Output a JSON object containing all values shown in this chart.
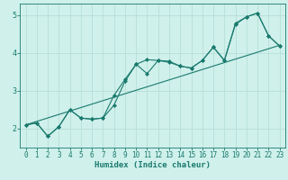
{
  "xlabel": "Humidex (Indice chaleur)",
  "xlim": [
    -0.5,
    23.5
  ],
  "ylim": [
    1.5,
    5.3
  ],
  "xticks": [
    0,
    1,
    2,
    3,
    4,
    5,
    6,
    7,
    8,
    9,
    10,
    11,
    12,
    13,
    14,
    15,
    16,
    17,
    18,
    19,
    20,
    21,
    22,
    23
  ],
  "yticks": [
    2,
    3,
    4,
    5
  ],
  "bg_color": "#cff0eb",
  "line_color": "#1a7a6e",
  "grid_color": "#b8dfd9",
  "line1_x": [
    0,
    23
  ],
  "line1_y": [
    2.1,
    4.2
  ],
  "line2_x": [
    0,
    1,
    2,
    3,
    4,
    5,
    6,
    7,
    8,
    9,
    10,
    11,
    12,
    13,
    14,
    15,
    16,
    17,
    18,
    19,
    20,
    21,
    22,
    23
  ],
  "line2_y": [
    2.1,
    2.15,
    1.8,
    2.05,
    2.5,
    2.28,
    2.25,
    2.28,
    2.62,
    3.25,
    3.7,
    3.45,
    3.8,
    3.75,
    3.65,
    3.6,
    3.8,
    4.15,
    3.8,
    4.75,
    4.95,
    5.05,
    4.45,
    4.18
  ],
  "line3_x": [
    0,
    1,
    2,
    3,
    4,
    5,
    6,
    7,
    8,
    9,
    10,
    11,
    12,
    13,
    14,
    15,
    16,
    17,
    18,
    19,
    20,
    21,
    22,
    23
  ],
  "line3_y": [
    2.1,
    2.15,
    1.8,
    2.05,
    2.5,
    2.28,
    2.25,
    2.28,
    2.88,
    3.3,
    3.7,
    3.82,
    3.8,
    3.78,
    3.65,
    3.6,
    3.8,
    4.15,
    3.8,
    4.78,
    4.95,
    5.05,
    4.45,
    4.18
  ],
  "marker": "D",
  "marker_size": 2.0,
  "linewidth": 0.8,
  "xlabel_fontsize": 6.5,
  "tick_fontsize": 5.5
}
